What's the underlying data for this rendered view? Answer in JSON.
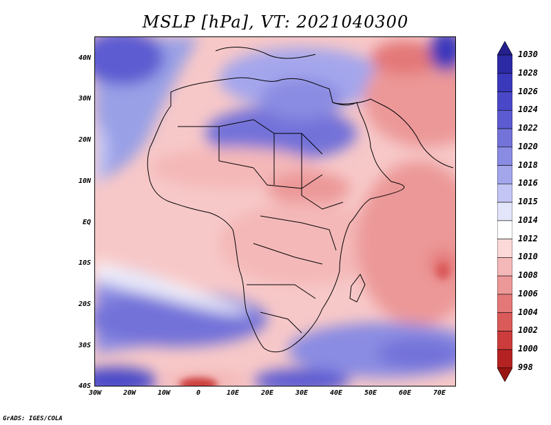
{
  "title": "MSLP [hPa], VT: 2021040300",
  "footer": "GrADS: IGES/COLA",
  "map": {
    "lat_labels": [
      "40N",
      "30N",
      "20N",
      "10N",
      "EQ",
      "10S",
      "20S",
      "30S",
      "40S"
    ],
    "lon_labels": [
      "30W",
      "20W",
      "10W",
      "0",
      "10E",
      "20E",
      "30E",
      "40E",
      "50E",
      "60E",
      "70E"
    ],
    "extent": {
      "lon_min": -30,
      "lon_max": 75,
      "lat_min": -40,
      "lat_max": 45
    }
  },
  "colorbar": {
    "levels": [
      "1030",
      "1028",
      "1026",
      "1024",
      "1022",
      "1020",
      "1018",
      "1016",
      "1015",
      "1014",
      "1012",
      "1010",
      "1008",
      "1006",
      "1004",
      "1002",
      "1000",
      "998"
    ],
    "colors": [
      "#241f8c",
      "#2d2aa6",
      "#3a38bb",
      "#4a48c8",
      "#5d5bd1",
      "#7372d9",
      "#8a8be2",
      "#a4a6ec",
      "#c3c6f4",
      "#e3e5fa",
      "#ffffff",
      "#fbd9d9",
      "#f4b8b8",
      "#ec9898",
      "#e47878",
      "#da5a5a",
      "#cc3c3c",
      "#b52222",
      "#9a1414"
    ]
  }
}
